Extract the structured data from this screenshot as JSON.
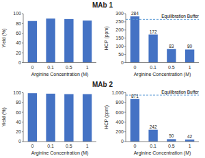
{
  "chart_data": [
    {
      "type": "bar",
      "title": "MAb 1",
      "categories": [
        "0",
        "0.1",
        "0.5",
        "1"
      ],
      "values": [
        85,
        90,
        89,
        86
      ],
      "color": "#4472C4",
      "xlabel": "Arginine Concentration (M)",
      "ylabel": "Yield (%)",
      "ylim": [
        0,
        100
      ],
      "yticks": [
        0,
        20,
        40,
        60,
        80,
        100
      ],
      "grid": false
    },
    {
      "type": "bar",
      "categories": [
        "0",
        "0.1",
        "0.5",
        "1"
      ],
      "values": [
        284,
        172,
        83,
        80
      ],
      "color": "#4472C4",
      "xlabel": "Arginine Concentration (M)",
      "ylabel": "HCP (ppm)",
      "ylim": [
        0,
        300
      ],
      "yticks": [
        0,
        50,
        100,
        150,
        200,
        250,
        300
      ],
      "grid": false,
      "data_labels": true,
      "reference_lines": [
        {
          "value": 265,
          "label": "Equilibration Buffer",
          "color": "#5B9BD5",
          "line_style": "dashed"
        }
      ]
    },
    {
      "type": "bar",
      "title": "MAb 2",
      "categories": [
        "0",
        "0.1",
        "0.5",
        "1"
      ],
      "values": [
        99,
        98,
        97,
        97
      ],
      "color": "#4472C4",
      "xlabel": "Arginine Concentration (M)",
      "ylabel": "Yield (%)",
      "ylim": [
        0,
        100
      ],
      "yticks": [
        0,
        20,
        40,
        60,
        80,
        100
      ],
      "grid": false
    },
    {
      "type": "bar",
      "categories": [
        "0",
        "0.1",
        "0.5",
        "1"
      ],
      "values": [
        871,
        242,
        50,
        42
      ],
      "color": "#4472C4",
      "xlabel": "Arginine Concentration (M)",
      "ylabel": "HCP (ppm)",
      "ylim": [
        0,
        1000
      ],
      "yticks": [
        0,
        200,
        400,
        600,
        800,
        {
          "value": 1000,
          "label": "1,000"
        }
      ],
      "grid": false,
      "data_labels": true,
      "reference_lines": [
        {
          "value": 950,
          "label": "Equilibration Buffer",
          "color": "#5B9BD5",
          "line_style": "dashed"
        }
      ]
    }
  ]
}
